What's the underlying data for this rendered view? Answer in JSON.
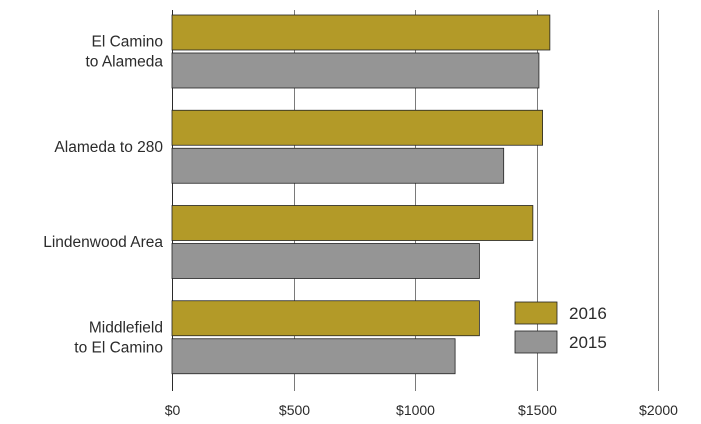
{
  "chart_data": {
    "type": "bar",
    "orientation": "horizontal",
    "categories": [
      [
        "El Camino",
        "to Alameda"
      ],
      [
        "Alameda to 280"
      ],
      [
        "Lindenwood Area"
      ],
      [
        "Middlefield",
        "to El Camino"
      ]
    ],
    "series": [
      {
        "name": "2016",
        "color": "#b39a28",
        "values": [
          1555,
          1525,
          1485,
          1265
        ]
      },
      {
        "name": "2015",
        "color": "#959595",
        "values": [
          1510,
          1365,
          1265,
          1165
        ]
      }
    ],
    "xlim": [
      0,
      2000
    ],
    "x_ticks": [
      0,
      500,
      1000,
      1500,
      2000
    ],
    "x_tick_labels": [
      "$0",
      "$500",
      "$1000",
      "$1500",
      "$2000"
    ],
    "title": "",
    "xlabel": "",
    "ylabel": "",
    "grid": "vertical",
    "legend_position": "bottom-right"
  }
}
